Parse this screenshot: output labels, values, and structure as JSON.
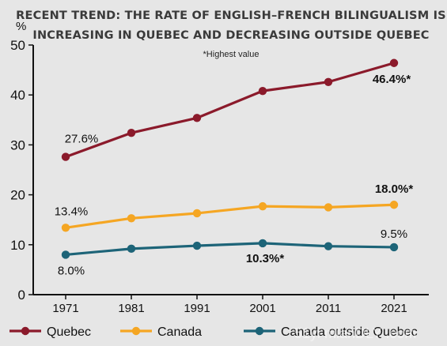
{
  "chart_data": {
    "type": "line",
    "title_lines": [
      "RECENT TREND: THE RATE OF ENGLISH–FRENCH BILINGUALISM IS",
      "INCREASING IN QUEBEC AND DECREASING OUTSIDE QUEBEC"
    ],
    "note": "*Highest value",
    "y_unit": "%",
    "x": [
      "1971",
      "1981",
      "1991",
      "2001",
      "2011",
      "2021"
    ],
    "ylim": [
      0,
      50
    ],
    "yticks": [
      0,
      10,
      20,
      30,
      40,
      50
    ],
    "grid": false,
    "legend_position": "bottom",
    "series": [
      {
        "name": "Quebec",
        "color": "#8b1a2b",
        "values": [
          27.6,
          32.4,
          35.4,
          40.8,
          42.6,
          46.4
        ],
        "labels": [
          {
            "index": 0,
            "text": "27.6%",
            "bold": false
          },
          {
            "index": 5,
            "text": "46.4%*",
            "bold": true
          }
        ]
      },
      {
        "name": "Canada",
        "color": "#f5a623",
        "values": [
          13.4,
          15.3,
          16.3,
          17.7,
          17.5,
          18.0
        ],
        "labels": [
          {
            "index": 0,
            "text": "13.4%",
            "bold": false
          },
          {
            "index": 5,
            "text": "18.0%*",
            "bold": true
          }
        ]
      },
      {
        "name": "Canada outside Quebec",
        "color": "#1d6478",
        "values": [
          8.0,
          9.2,
          9.8,
          10.3,
          9.7,
          9.5
        ],
        "labels": [
          {
            "index": 0,
            "text": "8.0%",
            "bold": false
          },
          {
            "index": 3,
            "text": "10.3%*",
            "bold": true
          },
          {
            "index": 5,
            "text": "9.5%",
            "bold": false
          }
        ]
      }
    ]
  },
  "watermark": "51yi mianDLY .com"
}
